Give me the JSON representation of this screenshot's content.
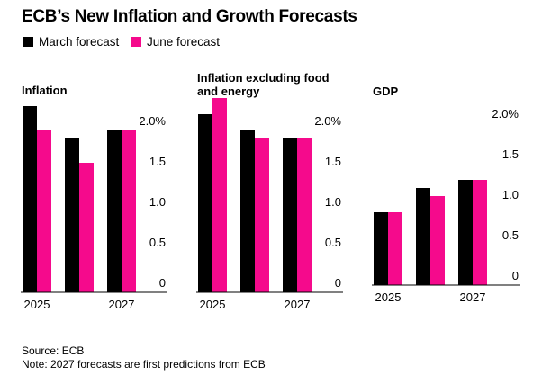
{
  "title": "ECB’s New Inflation and Growth Forecasts",
  "chart_data": [
    {
      "type": "bar",
      "title": "Inflation",
      "categories": [
        "2025",
        null,
        "2027"
      ],
      "series": [
        {
          "name": "March forecast",
          "color": "#000000",
          "values": [
            2.3,
            1.9,
            2.0
          ]
        },
        {
          "name": "June forecast",
          "color": "#f50a8c",
          "values": [
            2.0,
            1.6,
            2.0
          ]
        }
      ],
      "ylim": [
        0,
        2.5
      ],
      "yticks": [
        0,
        0.5,
        {
          "value": 1,
          "label": "1.0"
        },
        1.5,
        {
          "value": 2,
          "label": "2.0%"
        }
      ]
    },
    {
      "type": "bar",
      "title": "Inflation excluding food and energy",
      "categories": [
        "2025",
        null,
        "2027"
      ],
      "series": [
        {
          "color": "#000000",
          "values": [
            2.2,
            2.0,
            1.9
          ]
        },
        {
          "color": "#f50a8c",
          "values": [
            2.4,
            1.9,
            1.9
          ]
        }
      ],
      "ylim": [
        0,
        2.5
      ],
      "yticks": [
        0,
        0.5,
        {
          "value": 1,
          "label": "1.0"
        },
        1.5,
        {
          "value": 2,
          "label": "2.0%"
        }
      ]
    },
    {
      "type": "bar",
      "title": "GDP",
      "categories": [
        "2025",
        null,
        "2027"
      ],
      "series": [
        {
          "color": "#000000",
          "values": [
            0.9,
            1.2,
            1.3
          ]
        },
        {
          "color": "#f50a8c",
          "values": [
            0.9,
            1.1,
            1.3
          ]
        }
      ],
      "ylim": [
        0,
        2.5
      ],
      "yticks": [
        0,
        0.5,
        {
          "value": 1,
          "label": "1.0"
        },
        1.5,
        {
          "value": 2,
          "label": "2.0%"
        }
      ]
    }
  ],
  "source": "Source: ECB",
  "note": "Note: 2027 forecasts are first predictions from ECB"
}
